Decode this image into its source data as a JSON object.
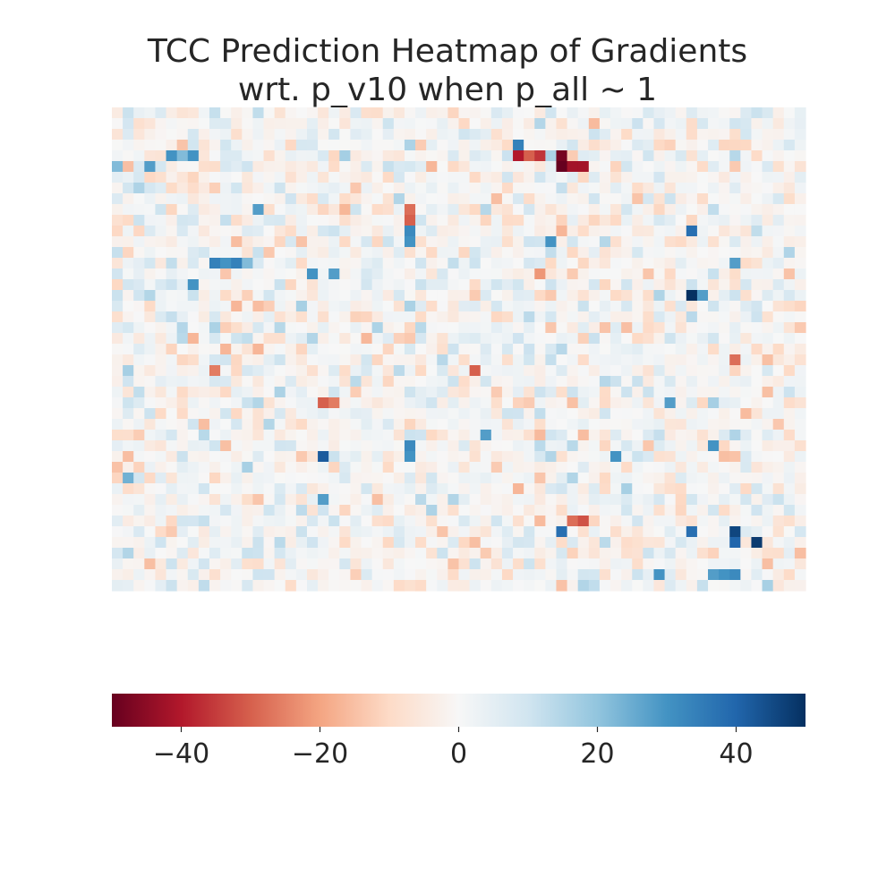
{
  "chart_data": {
    "type": "heatmap",
    "title_line1": "TCC Prediction Heatmap of Gradients",
    "title_line2": "wrt. p_v10 when p_all ~ 1",
    "xlabel": "",
    "ylabel": "",
    "rows": 45,
    "cols": 64,
    "colormap": "RdBu",
    "vmin": -50,
    "vmax": 50,
    "colorbar": {
      "orientation": "horizontal",
      "ticks": [
        -40,
        -20,
        0,
        20,
        40
      ],
      "tick_labels": [
        "−40",
        "−20",
        "0",
        "20",
        "40"
      ]
    },
    "colors": {
      "strong_negative": "#67001f",
      "strong_positive": "#053061",
      "neutral": "#f7f7f7"
    },
    "notable_cells": [
      {
        "row": 3,
        "col": 37,
        "value": 34
      },
      {
        "row": 4,
        "col": 37,
        "value": -40
      },
      {
        "row": 4,
        "col": 38,
        "value": -30
      },
      {
        "row": 4,
        "col": 39,
        "value": -36
      },
      {
        "row": 4,
        "col": 41,
        "value": -48
      },
      {
        "row": 5,
        "col": 41,
        "value": -50
      },
      {
        "row": 5,
        "col": 42,
        "value": -42
      },
      {
        "row": 5,
        "col": 43,
        "value": -42
      },
      {
        "row": 4,
        "col": 5,
        "value": 30
      },
      {
        "row": 4,
        "col": 6,
        "value": 22
      },
      {
        "row": 4,
        "col": 7,
        "value": 30
      },
      {
        "row": 5,
        "col": 0,
        "value": 22
      },
      {
        "row": 5,
        "col": 3,
        "value": 28
      },
      {
        "row": 9,
        "col": 13,
        "value": 28
      },
      {
        "row": 9,
        "col": 27,
        "value": -28
      },
      {
        "row": 10,
        "col": 27,
        "value": -30
      },
      {
        "row": 11,
        "col": 27,
        "value": 32
      },
      {
        "row": 12,
        "col": 27,
        "value": 30
      },
      {
        "row": 11,
        "col": 53,
        "value": 38
      },
      {
        "row": 12,
        "col": 40,
        "value": 30
      },
      {
        "row": 14,
        "col": 9,
        "value": 34
      },
      {
        "row": 14,
        "col": 10,
        "value": 30
      },
      {
        "row": 14,
        "col": 11,
        "value": 34
      },
      {
        "row": 14,
        "col": 12,
        "value": 22
      },
      {
        "row": 14,
        "col": 57,
        "value": 28
      },
      {
        "row": 15,
        "col": 18,
        "value": 30
      },
      {
        "row": 15,
        "col": 20,
        "value": 28
      },
      {
        "row": 15,
        "col": 39,
        "value": -22
      },
      {
        "row": 16,
        "col": 7,
        "value": 30
      },
      {
        "row": 17,
        "col": 53,
        "value": 50
      },
      {
        "row": 17,
        "col": 54,
        "value": 28
      },
      {
        "row": 23,
        "col": 57,
        "value": -28
      },
      {
        "row": 24,
        "col": 9,
        "value": -26
      },
      {
        "row": 24,
        "col": 33,
        "value": -30
      },
      {
        "row": 27,
        "col": 19,
        "value": -30
      },
      {
        "row": 27,
        "col": 20,
        "value": -26
      },
      {
        "row": 27,
        "col": 51,
        "value": 28
      },
      {
        "row": 30,
        "col": 34,
        "value": 28
      },
      {
        "row": 31,
        "col": 27,
        "value": 32
      },
      {
        "row": 32,
        "col": 19,
        "value": 42
      },
      {
        "row": 32,
        "col": 27,
        "value": 30
      },
      {
        "row": 32,
        "col": 46,
        "value": 30
      },
      {
        "row": 31,
        "col": 55,
        "value": 30
      },
      {
        "row": 34,
        "col": 1,
        "value": 24
      },
      {
        "row": 36,
        "col": 19,
        "value": 28
      },
      {
        "row": 38,
        "col": 42,
        "value": -28
      },
      {
        "row": 38,
        "col": 43,
        "value": -32
      },
      {
        "row": 39,
        "col": 41,
        "value": 38
      },
      {
        "row": 39,
        "col": 53,
        "value": 38
      },
      {
        "row": 39,
        "col": 57,
        "value": 46
      },
      {
        "row": 40,
        "col": 57,
        "value": 40
      },
      {
        "row": 40,
        "col": 59,
        "value": 48
      },
      {
        "row": 43,
        "col": 50,
        "value": 30
      },
      {
        "row": 43,
        "col": 55,
        "value": 28
      },
      {
        "row": 43,
        "col": 56,
        "value": 30
      },
      {
        "row": 43,
        "col": 57,
        "value": 32
      }
    ]
  }
}
